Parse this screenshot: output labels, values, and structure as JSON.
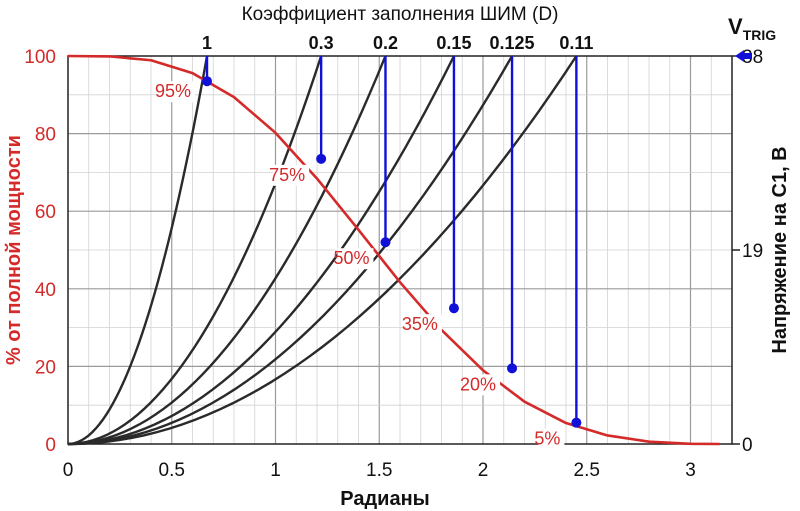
{
  "chart_data": {
    "type": "line",
    "title": "Коэффициент заполнения ШИМ (D)",
    "xlabel": "Радианы",
    "ylabel_left": "% от полной мощности",
    "ylabel_right": "Напряжение на C1, В",
    "xlim": [
      0,
      3.2
    ],
    "ylim_left": [
      0,
      100
    ],
    "ylim_right": [
      0,
      38
    ],
    "x_ticks": [
      "0",
      "0.5",
      "1",
      "1.5",
      "2",
      "2.5",
      "3"
    ],
    "x_tick_values": [
      0,
      0.5,
      1,
      1.5,
      2,
      2.5,
      3
    ],
    "y_ticks_left": [
      "0",
      "20",
      "40",
      "60",
      "80",
      "100"
    ],
    "y_tick_values_left": [
      0,
      20,
      40,
      60,
      80,
      100
    ],
    "y_ticks_right": [
      "0",
      "19",
      "38"
    ],
    "y_tick_values_right": [
      0,
      19,
      38
    ],
    "vtrig": {
      "main": "V",
      "sub": "TRIG"
    },
    "grid": true,
    "colors": {
      "power": "#d42a2a",
      "duty": "#2a2a2a",
      "marker": "#1010d8",
      "vtrig_arrow": "#1010d8"
    },
    "power_curve": {
      "x": [
        0,
        0.2,
        0.4,
        0.6,
        0.8,
        1.0,
        1.2,
        1.4,
        1.6,
        1.8,
        2.0,
        2.2,
        2.4,
        2.6,
        2.8,
        3.0,
        3.14
      ],
      "y": [
        100,
        99.9,
        98.9,
        95.6,
        89.4,
        80.2,
        68.4,
        55.2,
        41.7,
        29.4,
        19.0,
        10.9,
        5.4,
        2.2,
        0.6,
        0.05,
        0
      ]
    },
    "duty_curves": [
      {
        "label": "1",
        "x_end": 0.67
      },
      {
        "label": "0.3",
        "x_end": 1.22
      },
      {
        "label": "0.2",
        "x_end": 1.53
      },
      {
        "label": "0.15",
        "x_end": 1.86
      },
      {
        "label": "0.125",
        "x_end": 2.14
      },
      {
        "label": "0.11",
        "x_end": 2.45
      }
    ],
    "markers": [
      {
        "label": "95%",
        "x": 0.67,
        "y": 93.5
      },
      {
        "label": "75%",
        "x": 1.22,
        "y": 73.5
      },
      {
        "label": "50%",
        "x": 1.53,
        "y": 52.0
      },
      {
        "label": "35%",
        "x": 1.86,
        "y": 35.0
      },
      {
        "label": "20%",
        "x": 2.14,
        "y": 19.5
      },
      {
        "label": "5%",
        "x": 2.45,
        "y": 5.5
      }
    ]
  }
}
